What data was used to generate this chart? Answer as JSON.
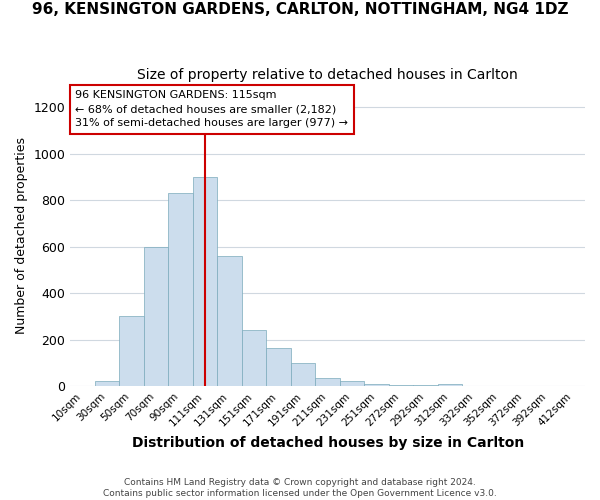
{
  "title": "96, KENSINGTON GARDENS, CARLTON, NOTTINGHAM, NG4 1DZ",
  "subtitle": "Size of property relative to detached houses in Carlton",
  "xlabel": "Distribution of detached houses by size in Carlton",
  "ylabel": "Number of detached properties",
  "footnote": "Contains HM Land Registry data © Crown copyright and database right 2024.\nContains public sector information licensed under the Open Government Licence v3.0.",
  "bin_labels": [
    "10sqm",
    "30sqm",
    "50sqm",
    "70sqm",
    "90sqm",
    "111sqm",
    "131sqm",
    "151sqm",
    "171sqm",
    "191sqm",
    "211sqm",
    "231sqm",
    "251sqm",
    "272sqm",
    "292sqm",
    "312sqm",
    "332sqm",
    "352sqm",
    "372sqm",
    "392sqm",
    "412sqm"
  ],
  "bar_heights": [
    0,
    20,
    300,
    600,
    830,
    900,
    560,
    240,
    165,
    100,
    35,
    20,
    10,
    5,
    5,
    10,
    0,
    0,
    0,
    0,
    0
  ],
  "bar_color": "#ccdded",
  "bar_edge_color": "#7aaabb",
  "vline_x": 5.0,
  "vline_color": "#cc0000",
  "annotation_text": "96 KENSINGTON GARDENS: 115sqm\n← 68% of detached houses are smaller (2,182)\n31% of semi-detached houses are larger (977) →",
  "annotation_box_color": "#ffffff",
  "annotation_box_edge": "#cc0000",
  "ylim": [
    0,
    1300
  ],
  "yticks": [
    0,
    200,
    400,
    600,
    800,
    1000,
    1200
  ],
  "background_color": "#ffffff",
  "grid_color": "#d0d8e0",
  "title_fontsize": 11,
  "subtitle_fontsize": 10
}
